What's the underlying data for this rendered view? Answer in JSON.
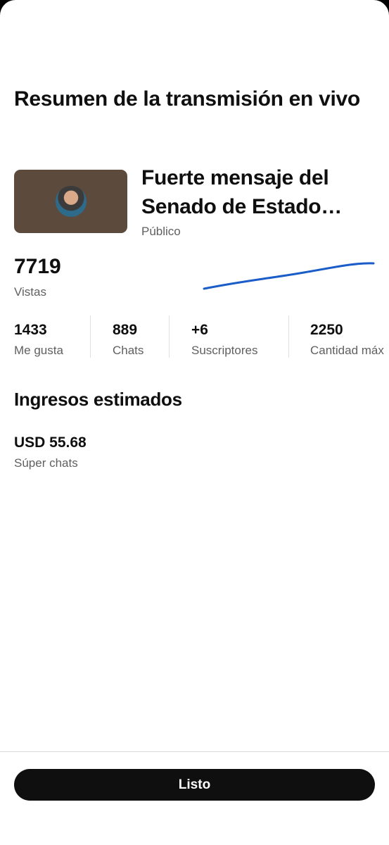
{
  "header": {
    "title": "Resumen de la transmisión en vivo"
  },
  "video": {
    "title": "Fuerte mensaje del Senado de Estado…",
    "visibility": "Público"
  },
  "views": {
    "value": "7719",
    "label": "Vistas"
  },
  "stats": [
    {
      "value": "1433",
      "label": "Me gusta"
    },
    {
      "value": "889",
      "label": "Chats"
    },
    {
      "value": "+6",
      "label": "Suscriptores"
    },
    {
      "value": "2250",
      "label": "Cantidad máx"
    }
  ],
  "revenue": {
    "title": "Ingresos estimados",
    "amount": "USD 55.68",
    "label": "Súper chats"
  },
  "button": {
    "label": "Listo"
  }
}
